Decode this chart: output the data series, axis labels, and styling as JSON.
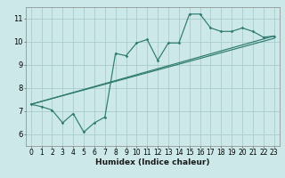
{
  "xlabel": "Humidex (Indice chaleur)",
  "background_color": "#cce8e8",
  "grid_color": "#aacccc",
  "line_color": "#2e7b6e",
  "xlim": [
    -0.5,
    23.5
  ],
  "ylim": [
    5.5,
    11.5
  ],
  "xticks": [
    0,
    1,
    2,
    3,
    4,
    5,
    6,
    7,
    8,
    9,
    10,
    11,
    12,
    13,
    14,
    15,
    16,
    17,
    18,
    19,
    20,
    21,
    22,
    23
  ],
  "yticks": [
    6,
    7,
    8,
    9,
    10,
    11
  ],
  "curve_x": [
    0,
    1,
    2,
    3,
    4,
    5,
    6,
    7,
    8,
    9,
    10,
    11,
    12,
    13,
    14,
    15,
    16,
    17,
    18,
    19,
    20,
    21,
    22,
    23
  ],
  "curve_y": [
    7.3,
    7.2,
    7.05,
    6.5,
    6.9,
    6.1,
    6.5,
    6.75,
    9.5,
    9.4,
    9.95,
    10.1,
    9.2,
    9.95,
    9.95,
    11.2,
    11.2,
    10.6,
    10.45,
    10.45,
    10.6,
    10.45,
    10.2,
    10.25
  ],
  "line1_x": [
    0,
    23
  ],
  "line1_y": [
    7.3,
    10.15
  ],
  "line2_x": [
    0,
    23
  ],
  "line2_y": [
    7.3,
    10.25
  ],
  "tick_fontsize": 5.5,
  "xlabel_fontsize": 6.5
}
